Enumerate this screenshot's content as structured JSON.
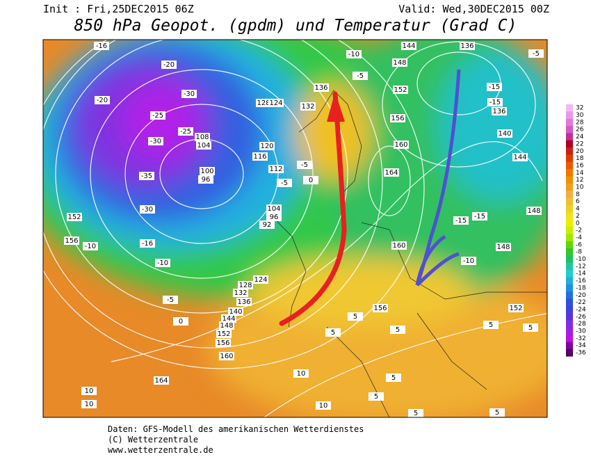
{
  "header": {
    "init": "Init : Fri,25DEC2015 06Z",
    "valid": "Valid: Wed,30DEC2015 00Z",
    "title": "850 hPa Geopot. (gpdm) und Temperatur (Grad C)"
  },
  "legend": {
    "values": [
      32,
      30,
      28,
      26,
      24,
      22,
      20,
      18,
      16,
      14,
      12,
      10,
      8,
      6,
      4,
      2,
      0,
      -2,
      -4,
      -6,
      -8,
      -10,
      -12,
      -14,
      -16,
      -18,
      -20,
      -22,
      -24,
      -26,
      -28,
      -30,
      -32,
      -34,
      -36
    ],
    "colors": [
      "#f4b8f4",
      "#ec98e8",
      "#e478dc",
      "#d858c8",
      "#c0308c",
      "#b00020",
      "#cc2010",
      "#e03c00",
      "#ec5a00",
      "#f07800",
      "#f09200",
      "#eca020",
      "#f0b040",
      "#f0c030",
      "#f0d020",
      "#f0e020",
      "#e8f000",
      "#c8f000",
      "#a0e800",
      "#60d800",
      "#30c830",
      "#20c060",
      "#20c8a0",
      "#20d0d0",
      "#20b0e0",
      "#2090e0",
      "#2070e0",
      "#3050e0",
      "#4040e0",
      "#6030e0",
      "#8030e0",
      "#a020e0",
      "#c010e0",
      "#8000a0",
      "#500060"
    ]
  },
  "map": {
    "labels": [
      "-16",
      "-20",
      "-30",
      "-20",
      "-25",
      "-30",
      "-25",
      "-35",
      "-30",
      "-10",
      "-16",
      "-10",
      "-5",
      "0",
      "152",
      "156",
      "100",
      "96",
      "108",
      "104",
      "128",
      "124",
      "132",
      "136",
      "120",
      "116",
      "112",
      "104",
      "96",
      "92",
      "128",
      "124",
      "132",
      "136",
      "140",
      "144",
      "148",
      "152",
      "156",
      "160",
      "164",
      "10",
      "10",
      "10",
      "-10",
      "-5",
      "144",
      "148",
      "152",
      "156",
      "160",
      "164",
      "160",
      "156",
      "136",
      "-5",
      "-15",
      "-15",
      "136",
      "140",
      "144",
      "148",
      "-15",
      "-15",
      "148",
      "-10",
      "152",
      "5",
      "5",
      "5",
      "5",
      "5",
      "10",
      "5",
      "5",
      "5",
      "5",
      "-5",
      "0",
      "-5"
    ]
  },
  "footer": {
    "line1": "Daten: GFS-Modell des amerikanischen Wetterdienstes",
    "line2": "(C) Wetterzentrale",
    "line3": "www.wetterzentrale.de"
  }
}
